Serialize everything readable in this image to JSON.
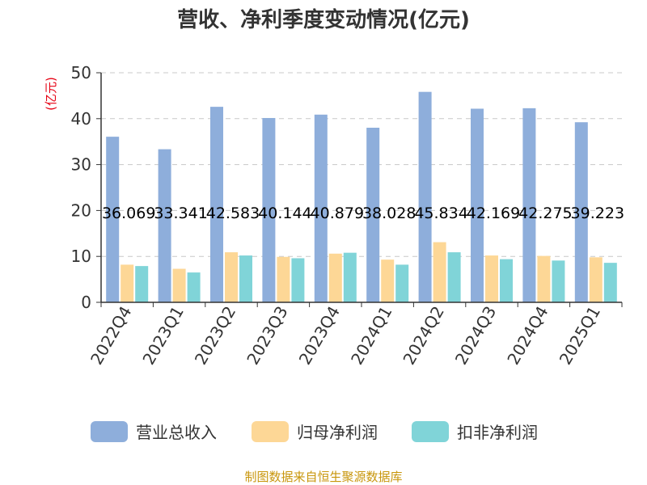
{
  "chart_data": {
    "type": "bar",
    "title": "营收、净利季度变动情况(亿元)",
    "ylabel": "(亿元)",
    "ylim": [
      0,
      50
    ],
    "yticks": [
      "0",
      "10",
      "20",
      "30",
      "40",
      "50"
    ],
    "grid": true,
    "legend_position": "bottom",
    "categories": [
      "2022Q4",
      "2023Q1",
      "2023Q2",
      "2023Q3",
      "2023Q4",
      "2024Q1",
      "2024Q2",
      "2024Q3",
      "2024Q4",
      "2025Q1"
    ],
    "series": [
      {
        "name": "营业总收入",
        "color": "#8eaedb",
        "values": [
          36.069,
          33.341,
          42.583,
          40.144,
          40.879,
          38.028,
          45.834,
          42.169,
          42.275,
          39.223
        ]
      },
      {
        "name": "归母净利润",
        "color": "#fdd796",
        "values": [
          8.2,
          7.3,
          10.9,
          9.9,
          10.6,
          9.3,
          13.1,
          10.2,
          10.1,
          9.8
        ]
      },
      {
        "name": "扣非净利润",
        "color": "#80d4d8",
        "values": [
          7.9,
          6.5,
          10.2,
          9.6,
          10.8,
          8.2,
          10.9,
          9.4,
          9.1,
          8.6
        ]
      }
    ],
    "data_labels": [
      "36.069",
      "33.341",
      "42.583",
      "40.144",
      "40.879",
      "38.028",
      "45.834",
      "42.169",
      "42.275",
      "39.223"
    ]
  },
  "footer": {
    "source": "制图数据来自恒生聚源数据库"
  }
}
